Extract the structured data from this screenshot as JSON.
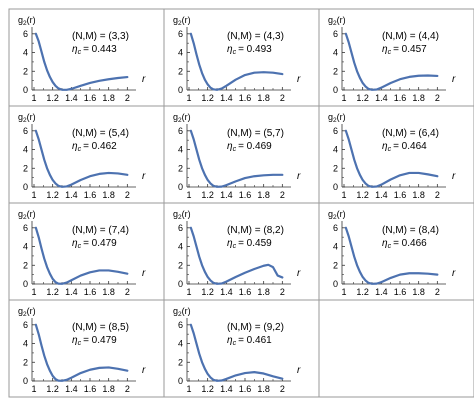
{
  "chart_data": [
    {
      "type": "line",
      "panel": 1,
      "ylabel": "g2(r)",
      "xlabel": "r",
      "xlim": [
        1,
        2.05
      ],
      "ylim": [
        0,
        6.3
      ],
      "xticks": [
        "1",
        "1.2",
        "1.4",
        "1.6",
        "1.8",
        "2"
      ],
      "yticks": [
        "0",
        "2",
        "4",
        "6"
      ],
      "annotation": {
        "NM": "(N,M) = (3,3)",
        "eta_label": "η",
        "eta_sub": "c",
        "eta_value": "= 0.443"
      },
      "x": [
        1.02,
        1.05,
        1.08,
        1.11,
        1.14,
        1.17,
        1.2,
        1.23,
        1.26,
        1.3,
        1.35,
        1.4,
        1.5,
        1.6,
        1.7,
        1.8,
        1.9,
        2.0
      ],
      "y": [
        6.0,
        5.2,
        4.1,
        3.0,
        2.1,
        1.4,
        0.85,
        0.45,
        0.18,
        0.03,
        0.02,
        0.12,
        0.45,
        0.75,
        0.98,
        1.15,
        1.28,
        1.38
      ]
    },
    {
      "type": "line",
      "panel": 2,
      "ylabel": "g2(r)",
      "xlabel": "r",
      "xlim": [
        1,
        2.05
      ],
      "ylim": [
        0,
        6.3
      ],
      "xticks": [
        "1",
        "1.2",
        "1.4",
        "1.6",
        "1.8",
        "2"
      ],
      "yticks": [
        "0",
        "2",
        "4",
        "6"
      ],
      "annotation": {
        "NM": "(N,M) = (4,3)",
        "eta_label": "η",
        "eta_sub": "c",
        "eta_value": "= 0.493"
      },
      "x": [
        1.02,
        1.05,
        1.08,
        1.11,
        1.14,
        1.17,
        1.2,
        1.23,
        1.26,
        1.3,
        1.35,
        1.4,
        1.5,
        1.6,
        1.7,
        1.8,
        1.9,
        2.0
      ],
      "y": [
        6.0,
        5.0,
        3.8,
        2.7,
        1.8,
        1.1,
        0.6,
        0.25,
        0.07,
        0.02,
        0.15,
        0.45,
        1.1,
        1.6,
        1.85,
        1.9,
        1.85,
        1.7
      ]
    },
    {
      "type": "line",
      "panel": 3,
      "ylabel": "g2(r)",
      "xlabel": "r",
      "xlim": [
        1,
        2.05
      ],
      "ylim": [
        0,
        6.3
      ],
      "xticks": [
        "1",
        "1.2",
        "1.4",
        "1.6",
        "1.8",
        "2"
      ],
      "yticks": [
        "0",
        "2",
        "4",
        "6"
      ],
      "annotation": {
        "NM": "(N,M) = (4,4)",
        "eta_label": "η",
        "eta_sub": "c",
        "eta_value": "= 0.457"
      },
      "x": [
        1.02,
        1.05,
        1.08,
        1.11,
        1.14,
        1.17,
        1.2,
        1.23,
        1.26,
        1.3,
        1.35,
        1.4,
        1.5,
        1.6,
        1.7,
        1.8,
        1.9,
        2.0
      ],
      "y": [
        6.0,
        5.1,
        4.0,
        2.9,
        2.0,
        1.3,
        0.75,
        0.38,
        0.13,
        0.02,
        0.05,
        0.25,
        0.75,
        1.15,
        1.4,
        1.52,
        1.55,
        1.5
      ]
    },
    {
      "type": "line",
      "panel": 4,
      "ylabel": "g2(r)",
      "xlabel": "r",
      "xlim": [
        1,
        2.05
      ],
      "ylim": [
        0,
        6.3
      ],
      "xticks": [
        "1",
        "1.2",
        "1.4",
        "1.6",
        "1.8",
        "2"
      ],
      "yticks": [
        "0",
        "2",
        "4",
        "6"
      ],
      "annotation": {
        "NM": "(N,M) = (5,4)",
        "eta_label": "η",
        "eta_sub": "c",
        "eta_value": "= 0.462"
      },
      "x": [
        1.02,
        1.05,
        1.08,
        1.11,
        1.14,
        1.17,
        1.2,
        1.23,
        1.26,
        1.3,
        1.35,
        1.4,
        1.5,
        1.6,
        1.7,
        1.8,
        1.9,
        2.0
      ],
      "y": [
        6.0,
        5.1,
        4.0,
        2.9,
        2.0,
        1.3,
        0.75,
        0.38,
        0.13,
        0.02,
        0.06,
        0.25,
        0.75,
        1.15,
        1.4,
        1.5,
        1.45,
        1.3
      ]
    },
    {
      "type": "line",
      "panel": 5,
      "ylabel": "g2(r)",
      "xlabel": "r",
      "xlim": [
        1,
        2.05
      ],
      "ylim": [
        0,
        6.3
      ],
      "xticks": [
        "1",
        "1.2",
        "1.4",
        "1.6",
        "1.8",
        "2"
      ],
      "yticks": [
        "0",
        "2",
        "4",
        "6"
      ],
      "annotation": {
        "NM": "(N,M) = (5,7)",
        "eta_label": "η",
        "eta_sub": "c",
        "eta_value": "= 0.469"
      },
      "x": [
        1.02,
        1.05,
        1.08,
        1.11,
        1.14,
        1.17,
        1.2,
        1.23,
        1.26,
        1.3,
        1.35,
        1.4,
        1.5,
        1.6,
        1.7,
        1.8,
        1.9,
        2.0
      ],
      "y": [
        6.0,
        5.1,
        4.0,
        2.9,
        2.0,
        1.3,
        0.75,
        0.38,
        0.13,
        0.02,
        0.04,
        0.2,
        0.6,
        0.95,
        1.15,
        1.25,
        1.3,
        1.3
      ]
    },
    {
      "type": "line",
      "panel": 6,
      "ylabel": "g2(r)",
      "xlabel": "r",
      "xlim": [
        1,
        2.05
      ],
      "ylim": [
        0,
        6.3
      ],
      "xticks": [
        "1",
        "1.2",
        "1.4",
        "1.6",
        "1.8",
        "2"
      ],
      "yticks": [
        "0",
        "2",
        "4",
        "6"
      ],
      "annotation": {
        "NM": "(N,M) = (6,4)",
        "eta_label": "η",
        "eta_sub": "c",
        "eta_value": "= 0.464"
      },
      "x": [
        1.02,
        1.05,
        1.08,
        1.11,
        1.14,
        1.17,
        1.2,
        1.23,
        1.26,
        1.3,
        1.35,
        1.4,
        1.5,
        1.6,
        1.7,
        1.8,
        1.9,
        2.0
      ],
      "y": [
        6.0,
        5.1,
        4.0,
        2.9,
        2.0,
        1.3,
        0.75,
        0.38,
        0.13,
        0.02,
        0.05,
        0.25,
        0.8,
        1.25,
        1.5,
        1.5,
        1.35,
        1.15
      ]
    },
    {
      "type": "line",
      "panel": 7,
      "ylabel": "g2(r)",
      "xlabel": "r",
      "xlim": [
        1,
        2.05
      ],
      "ylim": [
        0,
        6.3
      ],
      "xticks": [
        "1",
        "1.2",
        "1.4",
        "1.6",
        "1.8",
        "2"
      ],
      "yticks": [
        "0",
        "2",
        "4",
        "6"
      ],
      "annotation": {
        "NM": "(N,M) = (7,4)",
        "eta_label": "η",
        "eta_sub": "c",
        "eta_value": "= 0.479"
      },
      "x": [
        1.02,
        1.05,
        1.08,
        1.11,
        1.14,
        1.17,
        1.2,
        1.23,
        1.26,
        1.3,
        1.35,
        1.4,
        1.5,
        1.6,
        1.7,
        1.8,
        1.9,
        2.0
      ],
      "y": [
        6.0,
        5.0,
        3.8,
        2.7,
        1.8,
        1.1,
        0.55,
        0.2,
        0.04,
        0.02,
        0.15,
        0.4,
        0.9,
        1.25,
        1.45,
        1.45,
        1.3,
        1.1
      ]
    },
    {
      "type": "line",
      "panel": 8,
      "ylabel": "g2(r)",
      "xlabel": "r",
      "xlim": [
        1,
        2.05
      ],
      "ylim": [
        0,
        6.3
      ],
      "xticks": [
        "1",
        "1.2",
        "1.4",
        "1.6",
        "1.8",
        "2"
      ],
      "yticks": [
        "0",
        "2",
        "4",
        "6"
      ],
      "annotation": {
        "NM": "(N,M) = (8,2)",
        "eta_label": "η",
        "eta_sub": "c",
        "eta_value": "= 0.459"
      },
      "x": [
        1.02,
        1.05,
        1.08,
        1.11,
        1.14,
        1.17,
        1.2,
        1.23,
        1.26,
        1.3,
        1.35,
        1.4,
        1.5,
        1.6,
        1.7,
        1.8,
        1.85,
        1.9,
        1.95,
        2.0
      ],
      "y": [
        6.0,
        5.1,
        4.0,
        2.9,
        2.0,
        1.3,
        0.75,
        0.38,
        0.13,
        0.02,
        0.05,
        0.25,
        0.75,
        1.2,
        1.6,
        1.95,
        2.05,
        1.8,
        0.9,
        0.7
      ]
    },
    {
      "type": "line",
      "panel": 9,
      "ylabel": "g2(r)",
      "xlabel": "r",
      "xlim": [
        1,
        2.05
      ],
      "ylim": [
        0,
        6.3
      ],
      "xticks": [
        "1",
        "1.2",
        "1.4",
        "1.6",
        "1.8",
        "2"
      ],
      "yticks": [
        "0",
        "2",
        "4",
        "6"
      ],
      "annotation": {
        "NM": "(N,M) = (8,4)",
        "eta_label": "η",
        "eta_sub": "c",
        "eta_value": "= 0.466"
      },
      "x": [
        1.02,
        1.05,
        1.08,
        1.11,
        1.14,
        1.17,
        1.2,
        1.23,
        1.26,
        1.3,
        1.35,
        1.4,
        1.5,
        1.6,
        1.7,
        1.8,
        1.9,
        2.0
      ],
      "y": [
        6.0,
        5.1,
        4.0,
        2.9,
        2.0,
        1.3,
        0.75,
        0.38,
        0.13,
        0.02,
        0.04,
        0.2,
        0.65,
        1.0,
        1.15,
        1.15,
        1.1,
        1.0
      ]
    },
    {
      "type": "line",
      "panel": 10,
      "ylabel": "g2(r)",
      "xlabel": "r",
      "xlim": [
        1,
        2.05
      ],
      "ylim": [
        0,
        6.3
      ],
      "xticks": [
        "1",
        "1.2",
        "1.4",
        "1.6",
        "1.8",
        "2"
      ],
      "yticks": [
        "0",
        "2",
        "4",
        "6"
      ],
      "annotation": {
        "NM": "(N,M) = (8,5)",
        "eta_label": "η",
        "eta_sub": "c",
        "eta_value": "= 0.479"
      },
      "x": [
        1.02,
        1.05,
        1.08,
        1.11,
        1.14,
        1.17,
        1.2,
        1.23,
        1.26,
        1.3,
        1.35,
        1.4,
        1.5,
        1.6,
        1.7,
        1.8,
        1.9,
        2.0
      ],
      "y": [
        6.0,
        5.0,
        3.8,
        2.7,
        1.8,
        1.1,
        0.55,
        0.2,
        0.04,
        0.02,
        0.12,
        0.35,
        0.85,
        1.2,
        1.4,
        1.45,
        1.3,
        1.1
      ]
    },
    {
      "type": "line",
      "panel": 11,
      "ylabel": "g2(r)",
      "xlabel": "r",
      "xlim": [
        1,
        2.05
      ],
      "ylim": [
        0,
        6.3
      ],
      "xticks": [
        "1",
        "1.2",
        "1.4",
        "1.6",
        "1.8",
        "2"
      ],
      "yticks": [
        "0",
        "2",
        "4",
        "6"
      ],
      "annotation": {
        "NM": "(N,M) = (9,2)",
        "eta_label": "η",
        "eta_sub": "c",
        "eta_value": "= 0.461"
      },
      "x": [
        1.02,
        1.05,
        1.08,
        1.11,
        1.14,
        1.17,
        1.2,
        1.23,
        1.26,
        1.3,
        1.35,
        1.4,
        1.5,
        1.6,
        1.7,
        1.8,
        1.9,
        2.0
      ],
      "y": [
        6.0,
        5.1,
        4.0,
        2.9,
        2.0,
        1.3,
        0.75,
        0.38,
        0.13,
        0.02,
        0.05,
        0.22,
        0.6,
        0.85,
        0.95,
        0.8,
        0.5,
        0.25
      ]
    }
  ],
  "style": {
    "line_color": "#4d72b0",
    "grid_border": "#9a9a9a",
    "axis_color": "#333333"
  }
}
